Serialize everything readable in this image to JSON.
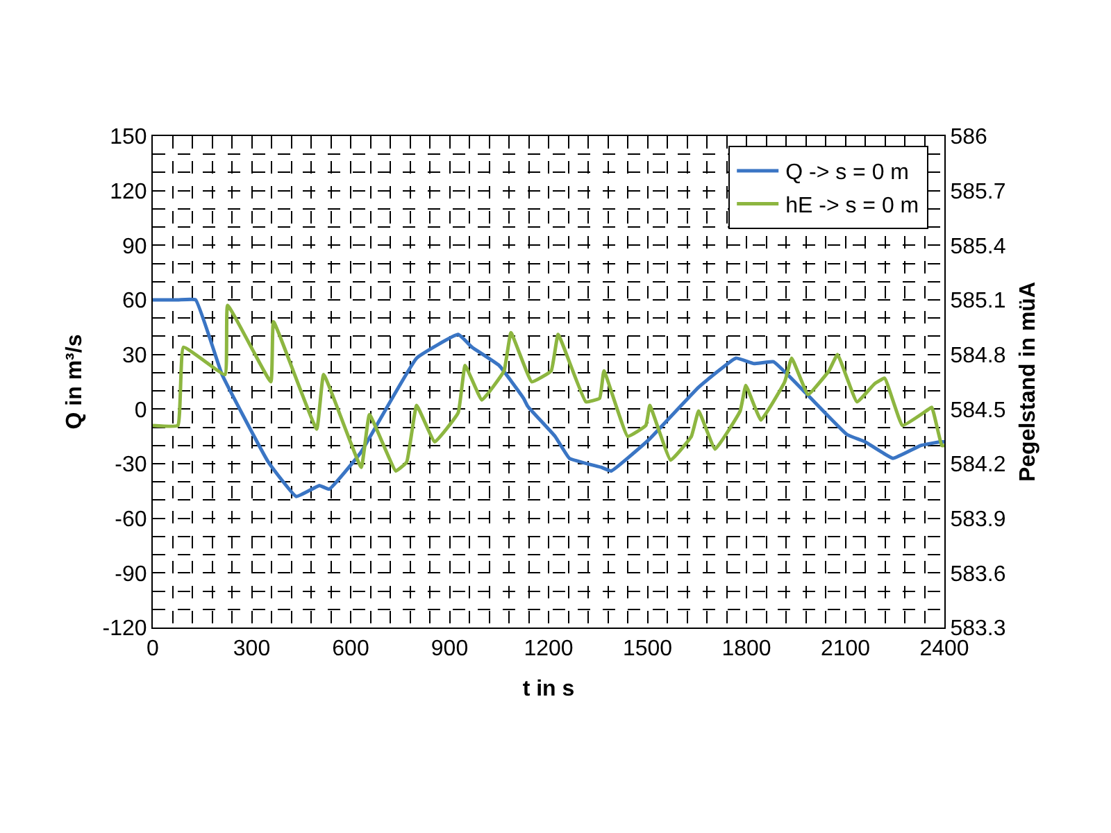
{
  "chart_data": {
    "type": "line",
    "xlabel": "t in s",
    "ylabel": "Q in m³/s",
    "y2label": "Pegelstand in müA",
    "xlim": [
      0,
      2400
    ],
    "xticks": [
      0,
      300,
      600,
      900,
      1200,
      1500,
      1800,
      2100,
      2400
    ],
    "ylim": [
      -120,
      150
    ],
    "yticks": [
      -120,
      -90,
      -60,
      -30,
      0,
      30,
      60,
      90,
      120,
      150
    ],
    "y2lim": [
      583.3,
      586
    ],
    "y2ticks": [
      {
        "value": 583.3,
        "label": "583.3"
      },
      {
        "value": 583.6,
        "label": "583.6"
      },
      {
        "value": 583.9,
        "label": "583.9"
      },
      {
        "value": 584.2,
        "label": "584.2"
      },
      {
        "value": 584.5,
        "label": "584.5"
      },
      {
        "value": 584.8,
        "label": "584.8"
      },
      {
        "value": 585.1,
        "label": "585.1"
      },
      {
        "value": 585.4,
        "label": "585.4"
      },
      {
        "value": 585.7,
        "label": "585.7"
      },
      {
        "value": 586,
        "label": "586"
      }
    ],
    "grid": true,
    "legend": "top right",
    "line_style": "solid",
    "marker": "none",
    "series": [
      {
        "name": "Q -> s = 0 m",
        "color": "#3a75c4",
        "x": [
          0,
          76,
          130,
          210,
          350,
          435,
          505,
          535,
          630,
          800,
          926,
          968,
          1050,
          1124,
          1137,
          1220,
          1263,
          1360,
          1390,
          1503,
          1655,
          1768,
          1823,
          1882,
          1979,
          2105,
          2160,
          2244,
          2328,
          2387,
          2400
        ],
        "values": [
          60,
          60,
          60,
          19,
          -29,
          -48,
          -42,
          -44,
          -24,
          28,
          41,
          34,
          24,
          6,
          1.5,
          -15,
          -27,
          -32,
          -34,
          -17,
          12,
          28,
          25,
          26,
          9,
          -14,
          -18,
          -27,
          -20,
          -18,
          -18
        ]
      },
      {
        "name": "hE -> s = 0 m",
        "color": "#8db640",
        "axis": "y2",
        "x": [
          0,
          76,
          93,
          219,
          227,
          358,
          366,
          497,
          518,
          632,
          657,
          737,
          770,
          800,
          855,
          926,
          947,
          998,
          1065,
          1086,
          1149,
          1208,
          1229,
          1313,
          1355,
          1368,
          1440,
          1495,
          1507,
          1570,
          1633,
          1655,
          1705,
          1781,
          1798,
          1844,
          1916,
          1937,
          1987,
          2050,
          2076,
          2135,
          2189,
          2219,
          2273,
          2345,
          2362,
          2392,
          2400
        ],
        "values": [
          584.41,
          584.41,
          584.84,
          584.69,
          585.07,
          584.65,
          584.98,
          584.39,
          584.69,
          584.18,
          584.47,
          584.16,
          584.21,
          584.52,
          584.32,
          584.48,
          584.74,
          584.55,
          584.71,
          584.92,
          584.65,
          584.71,
          584.91,
          584.54,
          584.56,
          584.71,
          584.35,
          584.41,
          584.52,
          584.22,
          584.35,
          584.49,
          584.28,
          584.49,
          584.63,
          584.44,
          584.65,
          584.78,
          584.58,
          584.71,
          584.8,
          584.54,
          584.64,
          584.67,
          584.41,
          584.49,
          584.51,
          584.3,
          584.3
        ]
      }
    ]
  }
}
